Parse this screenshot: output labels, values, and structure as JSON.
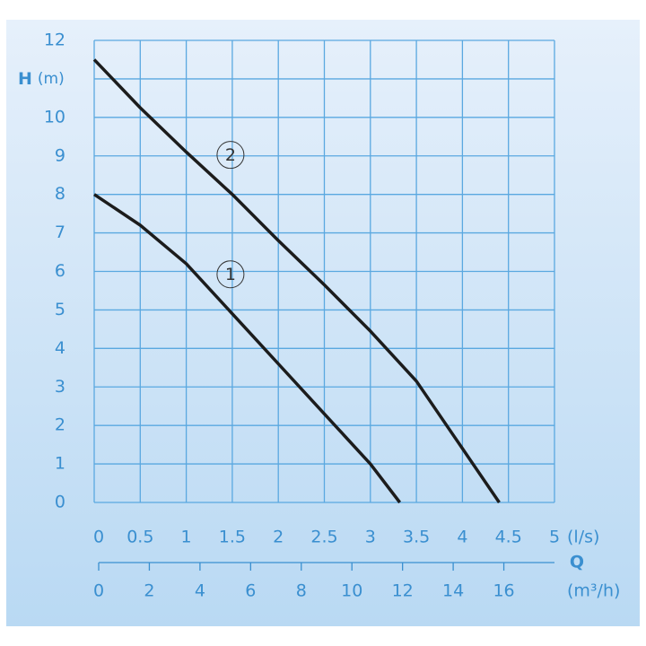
{
  "chart_data": {
    "type": "line",
    "ylabel": "H",
    "yunit": "(m)",
    "xlabel": "Q",
    "xunit": "(l/s)",
    "x2unit": "(m³/h)",
    "xlim": [
      0,
      5
    ],
    "xticks": [
      0,
      0.5,
      1,
      1.5,
      2,
      2.5,
      3,
      3.5,
      4,
      4.5,
      5
    ],
    "x2lim": [
      0,
      18
    ],
    "x2ticks": [
      0,
      2,
      4,
      6,
      8,
      10,
      12,
      14,
      16
    ],
    "ylim": [
      0,
      12
    ],
    "yticks": [
      0,
      1,
      2,
      3,
      4,
      5,
      6,
      7,
      8,
      9,
      10,
      12
    ],
    "ygrid": [
      0,
      1,
      2,
      3,
      4,
      5,
      6,
      7,
      8,
      9,
      10,
      11,
      12
    ],
    "grid": true,
    "grid_color": "#5aa8e0",
    "text_color": "#3a8fd0",
    "series": [
      {
        "name": "1",
        "color": "#1c1c1c",
        "x": [
          0,
          0.5,
          1,
          1.5,
          2,
          2.5,
          3,
          3.32
        ],
        "values": [
          8,
          7.2,
          6.2,
          4.9,
          3.6,
          2.3,
          1.0,
          0
        ]
      },
      {
        "name": "2",
        "color": "#1c1c1c",
        "x": [
          0,
          0.5,
          1,
          1.5,
          2,
          2.5,
          3,
          3.5,
          4,
          4.4
        ],
        "values": [
          11.5,
          10.25,
          9.1,
          8.0,
          6.8,
          5.65,
          4.45,
          3.15,
          1.4,
          0
        ]
      }
    ]
  }
}
